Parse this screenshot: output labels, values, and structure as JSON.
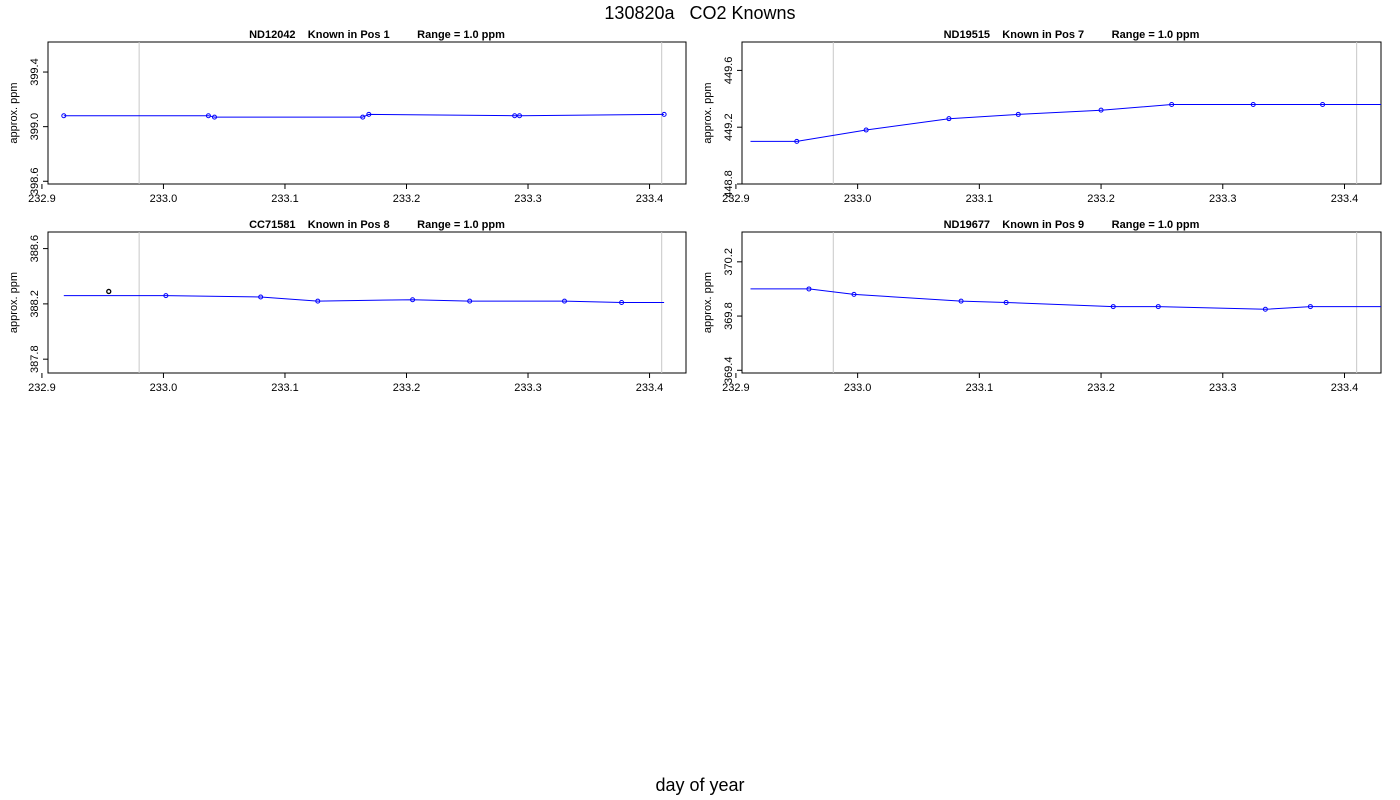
{
  "title": "130820a   CO2 Knowns",
  "xlabel": "day of year",
  "colors": {
    "line": "#0000ff",
    "marker": "#0000ff",
    "outlier": "#000000",
    "vline": "#c8c8c8",
    "frame": "#000000"
  },
  "chart_data": [
    {
      "type": "line",
      "panel_title": "ND12042    Known in Pos 1         Range = 1.0 ppm",
      "ylabel": "approx. ppm",
      "xlim": [
        232.905,
        233.43
      ],
      "ylim": [
        398.58,
        399.62
      ],
      "xticks": [
        232.9,
        233.0,
        233.1,
        233.2,
        233.3,
        233.4
      ],
      "xtick_labels": [
        "232.9",
        "233.0",
        "233.1",
        "233.2",
        "233.3",
        "233.4"
      ],
      "yticks": [
        398.6,
        399.0,
        399.4
      ],
      "ytick_labels": [
        "398.6",
        "399.0",
        "399.4"
      ],
      "vlines": [
        232.98,
        233.41
      ],
      "line": {
        "x": [
          232.918,
          233.037,
          233.042,
          233.164,
          233.169,
          233.289,
          233.293,
          233.412
        ],
        "y": [
          399.08,
          399.08,
          399.07,
          399.07,
          399.09,
          399.08,
          399.08,
          399.09
        ]
      },
      "points": {
        "x": [
          232.918,
          233.037,
          233.042,
          233.164,
          233.169,
          233.289,
          233.293,
          233.412
        ],
        "y": [
          399.08,
          399.08,
          399.07,
          399.07,
          399.09,
          399.08,
          399.08,
          399.09
        ]
      },
      "outliers": {
        "x": [],
        "y": []
      }
    },
    {
      "type": "line",
      "panel_title": "ND19515    Known in Pos 7         Range = 1.0 ppm",
      "ylabel": "approx. ppm",
      "xlim": [
        232.905,
        233.43
      ],
      "ylim": [
        448.8,
        449.8
      ],
      "xticks": [
        232.9,
        233.0,
        233.1,
        233.2,
        233.3,
        233.4
      ],
      "xtick_labels": [
        "232.9",
        "233.0",
        "233.1",
        "233.2",
        "233.3",
        "233.4"
      ],
      "yticks": [
        448.8,
        449.2,
        449.6
      ],
      "ytick_labels": [
        "448.8",
        "449.2",
        "449.6"
      ],
      "vlines": [
        232.98,
        233.41
      ],
      "line": {
        "x": [
          232.912,
          232.95,
          233.007,
          233.075,
          233.132,
          233.2,
          233.258,
          233.325,
          233.382,
          233.43
        ],
        "y": [
          449.1,
          449.1,
          449.18,
          449.26,
          449.29,
          449.32,
          449.36,
          449.36,
          449.36,
          449.36
        ]
      },
      "points": {
        "x": [
          232.95,
          233.007,
          233.075,
          233.132,
          233.2,
          233.258,
          233.325,
          233.382
        ],
        "y": [
          449.1,
          449.18,
          449.26,
          449.29,
          449.32,
          449.36,
          449.36,
          449.36
        ]
      },
      "outliers": {
        "x": [],
        "y": []
      }
    },
    {
      "type": "line",
      "panel_title": "CC71581    Known in Pos 8         Range = 1.0 ppm",
      "ylabel": "approx. ppm",
      "xlim": [
        232.905,
        233.43
      ],
      "ylim": [
        387.7,
        388.72
      ],
      "xticks": [
        232.9,
        233.0,
        233.1,
        233.2,
        233.3,
        233.4
      ],
      "xtick_labels": [
        "232.9",
        "233.0",
        "233.1",
        "233.2",
        "233.3",
        "233.4"
      ],
      "yticks": [
        387.8,
        388.2,
        388.6
      ],
      "ytick_labels": [
        "387.8",
        "388.2",
        "388.6"
      ],
      "vlines": [
        232.98,
        233.41
      ],
      "line": {
        "x": [
          232.918,
          233.002,
          233.08,
          233.127,
          233.205,
          233.252,
          233.33,
          233.377,
          233.412
        ],
        "y": [
          388.26,
          388.26,
          388.25,
          388.22,
          388.23,
          388.22,
          388.22,
          388.21,
          388.21
        ]
      },
      "points": {
        "x": [
          233.002,
          233.08,
          233.127,
          233.205,
          233.252,
          233.33,
          233.377
        ],
        "y": [
          388.26,
          388.25,
          388.22,
          388.23,
          388.22,
          388.22,
          388.21
        ]
      },
      "outliers": {
        "x": [
          232.955
        ],
        "y": [
          388.29
        ]
      }
    },
    {
      "type": "line",
      "panel_title": "ND19677    Known in Pos 9         Range = 1.0 ppm",
      "ylabel": "approx. ppm",
      "xlim": [
        232.905,
        233.43
      ],
      "ylim": [
        369.38,
        370.42
      ],
      "xticks": [
        232.9,
        233.0,
        233.1,
        233.2,
        233.3,
        233.4
      ],
      "xtick_labels": [
        "232.9",
        "233.0",
        "233.1",
        "233.2",
        "233.3",
        "233.4"
      ],
      "yticks": [
        369.4,
        369.8,
        370.2
      ],
      "ytick_labels": [
        "369.4",
        "369.8",
        "370.2"
      ],
      "vlines": [
        232.98,
        233.41
      ],
      "line": {
        "x": [
          232.912,
          232.96,
          232.997,
          233.085,
          233.122,
          233.21,
          233.247,
          233.335,
          233.372,
          233.43
        ],
        "y": [
          370.0,
          370.0,
          369.96,
          369.91,
          369.9,
          369.87,
          369.87,
          369.85,
          369.87,
          369.87
        ]
      },
      "points": {
        "x": [
          232.96,
          232.997,
          233.085,
          233.122,
          233.21,
          233.247,
          233.335,
          233.372
        ],
        "y": [
          370.0,
          369.96,
          369.91,
          369.9,
          369.87,
          369.87,
          369.85,
          369.87
        ]
      },
      "outliers": {
        "x": [],
        "y": []
      }
    }
  ]
}
